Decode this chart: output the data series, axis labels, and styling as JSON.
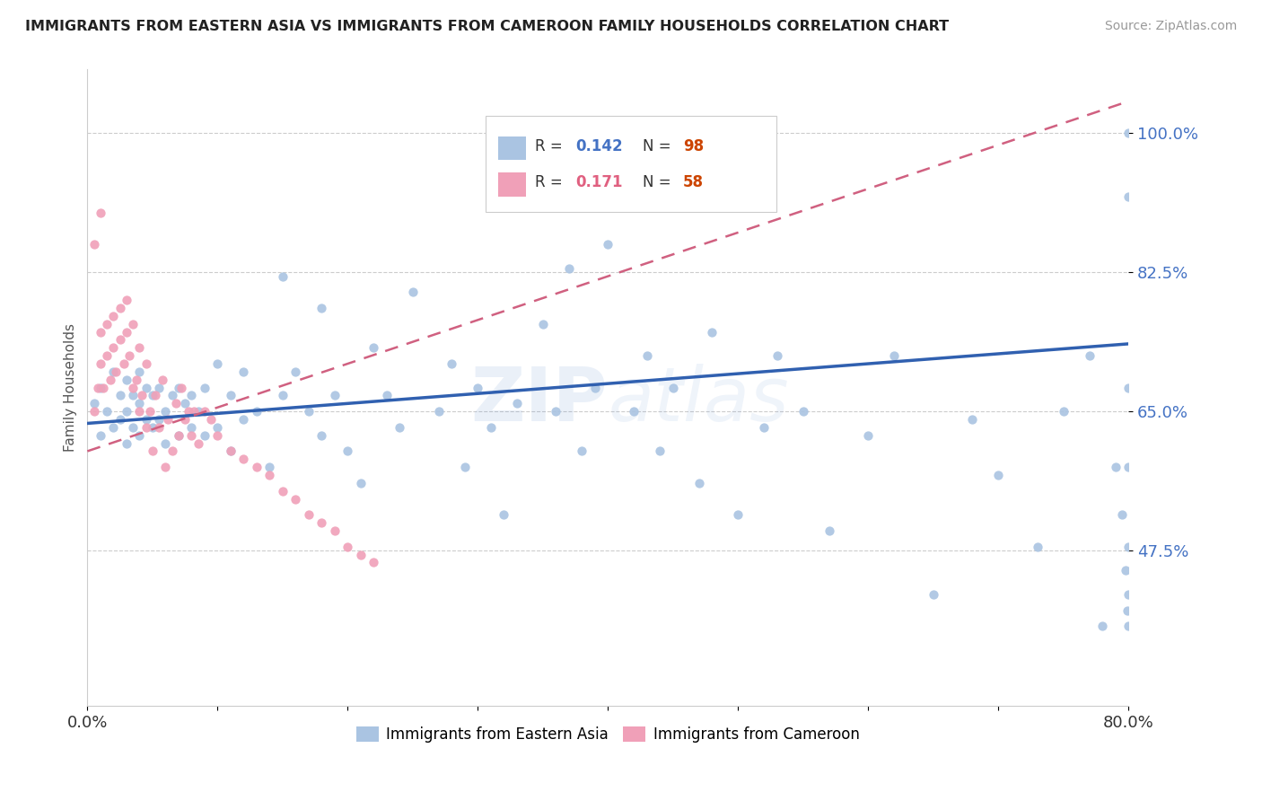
{
  "title": "IMMIGRANTS FROM EASTERN ASIA VS IMMIGRANTS FROM CAMEROON FAMILY HOUSEHOLDS CORRELATION CHART",
  "source": "Source: ZipAtlas.com",
  "ylabel": "Family Households",
  "legend_label1": "Immigrants from Eastern Asia",
  "legend_label2": "Immigrants from Cameroon",
  "r1": 0.142,
  "n1": 98,
  "r2": 0.171,
  "n2": 58,
  "color1": "#aac4e2",
  "color2": "#f0a0b8",
  "trendline1_color": "#3060b0",
  "trendline2_color": "#d06080",
  "xlim": [
    0.0,
    0.8
  ],
  "ylim": [
    0.28,
    1.08
  ],
  "yticks": [
    0.475,
    0.65,
    0.825,
    1.0
  ],
  "ytick_labels": [
    "47.5%",
    "65.0%",
    "82.5%",
    "100.0%"
  ],
  "xtick_labels": [
    "0.0%",
    "80.0%"
  ],
  "watermark": "ZIPatlas",
  "background_color": "#ffffff",
  "scatter1_x": [
    0.005,
    0.01,
    0.01,
    0.015,
    0.02,
    0.02,
    0.025,
    0.025,
    0.03,
    0.03,
    0.03,
    0.035,
    0.035,
    0.04,
    0.04,
    0.04,
    0.045,
    0.045,
    0.05,
    0.05,
    0.055,
    0.055,
    0.06,
    0.06,
    0.065,
    0.07,
    0.07,
    0.075,
    0.08,
    0.08,
    0.085,
    0.09,
    0.09,
    0.1,
    0.1,
    0.11,
    0.11,
    0.12,
    0.12,
    0.13,
    0.14,
    0.15,
    0.15,
    0.16,
    0.17,
    0.18,
    0.18,
    0.19,
    0.2,
    0.21,
    0.22,
    0.23,
    0.24,
    0.25,
    0.27,
    0.28,
    0.29,
    0.3,
    0.31,
    0.32,
    0.33,
    0.35,
    0.36,
    0.37,
    0.38,
    0.39,
    0.4,
    0.42,
    0.43,
    0.44,
    0.45,
    0.47,
    0.48,
    0.5,
    0.52,
    0.53,
    0.55,
    0.57,
    0.6,
    0.62,
    0.65,
    0.68,
    0.7,
    0.73,
    0.75,
    0.77,
    0.78,
    0.79,
    0.795,
    0.798,
    0.799,
    0.8,
    0.8,
    0.8,
    0.8,
    0.8,
    0.8,
    0.8
  ],
  "scatter1_y": [
    0.66,
    0.62,
    0.68,
    0.65,
    0.63,
    0.7,
    0.64,
    0.67,
    0.61,
    0.65,
    0.69,
    0.63,
    0.67,
    0.62,
    0.66,
    0.7,
    0.64,
    0.68,
    0.63,
    0.67,
    0.64,
    0.68,
    0.61,
    0.65,
    0.67,
    0.62,
    0.68,
    0.66,
    0.63,
    0.67,
    0.65,
    0.62,
    0.68,
    0.63,
    0.71,
    0.6,
    0.67,
    0.64,
    0.7,
    0.65,
    0.58,
    0.82,
    0.67,
    0.7,
    0.65,
    0.78,
    0.62,
    0.67,
    0.6,
    0.56,
    0.73,
    0.67,
    0.63,
    0.8,
    0.65,
    0.71,
    0.58,
    0.68,
    0.63,
    0.52,
    0.66,
    0.76,
    0.65,
    0.83,
    0.6,
    0.68,
    0.86,
    0.65,
    0.72,
    0.6,
    0.68,
    0.56,
    0.75,
    0.52,
    0.63,
    0.72,
    0.65,
    0.5,
    0.62,
    0.72,
    0.42,
    0.64,
    0.57,
    0.48,
    0.65,
    0.72,
    0.38,
    0.58,
    0.52,
    0.45,
    0.4,
    0.68,
    0.58,
    0.48,
    0.42,
    0.38,
    1.0,
    0.92
  ],
  "scatter2_x": [
    0.005,
    0.008,
    0.01,
    0.01,
    0.012,
    0.015,
    0.015,
    0.018,
    0.02,
    0.02,
    0.022,
    0.025,
    0.025,
    0.028,
    0.03,
    0.03,
    0.032,
    0.035,
    0.035,
    0.038,
    0.04,
    0.04,
    0.042,
    0.045,
    0.045,
    0.048,
    0.05,
    0.052,
    0.055,
    0.058,
    0.06,
    0.062,
    0.065,
    0.068,
    0.07,
    0.072,
    0.075,
    0.078,
    0.08,
    0.082,
    0.085,
    0.09,
    0.095,
    0.1,
    0.11,
    0.12,
    0.13,
    0.14,
    0.15,
    0.16,
    0.17,
    0.18,
    0.19,
    0.2,
    0.21,
    0.22,
    0.005,
    0.01
  ],
  "scatter2_y": [
    0.65,
    0.68,
    0.71,
    0.75,
    0.68,
    0.72,
    0.76,
    0.69,
    0.73,
    0.77,
    0.7,
    0.74,
    0.78,
    0.71,
    0.75,
    0.79,
    0.72,
    0.68,
    0.76,
    0.69,
    0.65,
    0.73,
    0.67,
    0.63,
    0.71,
    0.65,
    0.6,
    0.67,
    0.63,
    0.69,
    0.58,
    0.64,
    0.6,
    0.66,
    0.62,
    0.68,
    0.64,
    0.65,
    0.62,
    0.65,
    0.61,
    0.65,
    0.64,
    0.62,
    0.6,
    0.59,
    0.58,
    0.57,
    0.55,
    0.54,
    0.52,
    0.51,
    0.5,
    0.48,
    0.47,
    0.46,
    0.86,
    0.9
  ]
}
